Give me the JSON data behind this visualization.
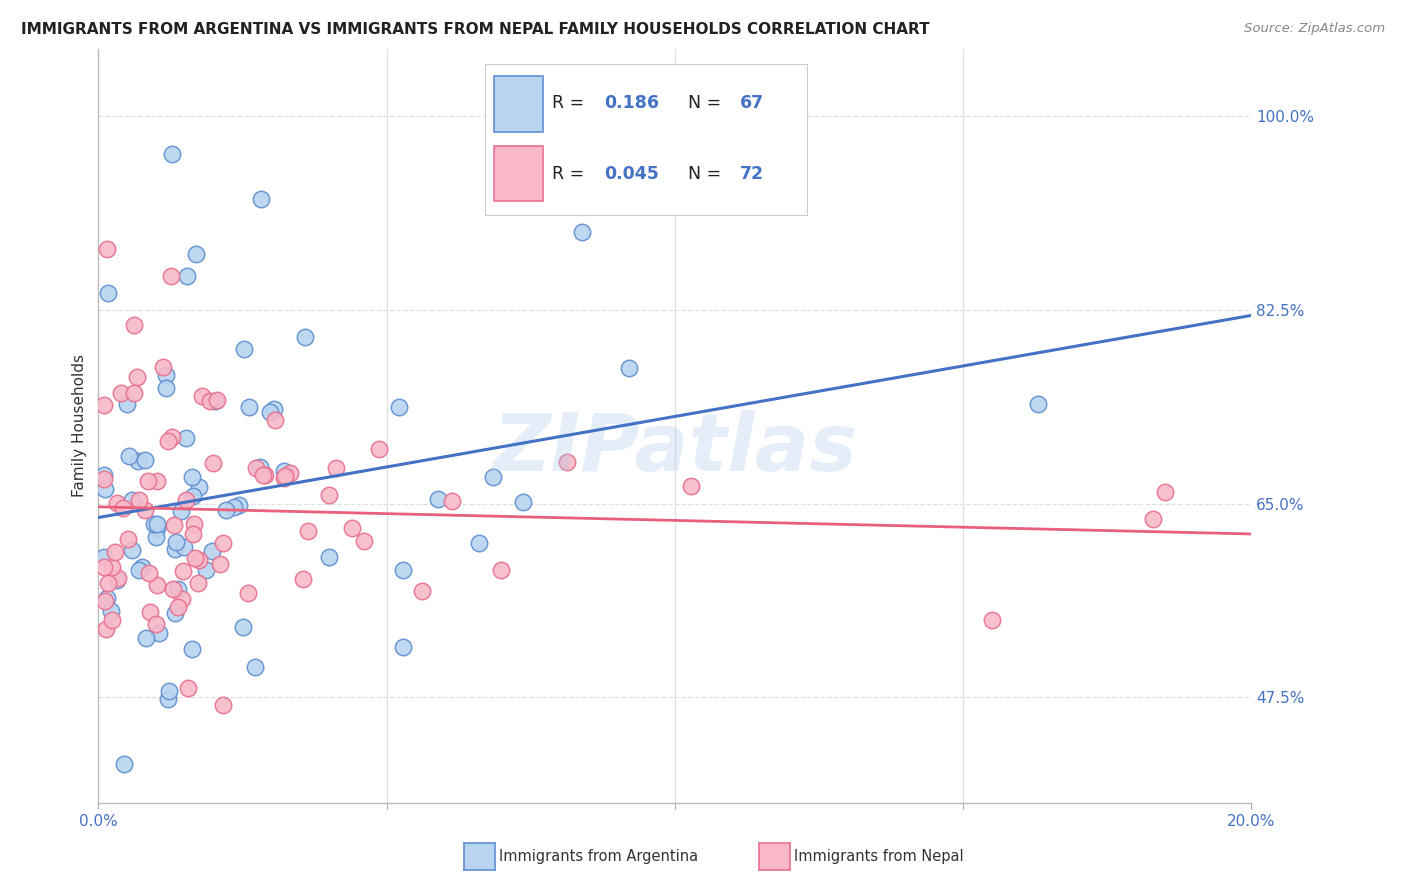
{
  "title": "IMMIGRANTS FROM ARGENTINA VS IMMIGRANTS FROM NEPAL FAMILY HOUSEHOLDS CORRELATION CHART",
  "source": "Source: ZipAtlas.com",
  "ylabel": "Family Households",
  "yticks": [
    0.475,
    0.65,
    0.825,
    1.0
  ],
  "ytick_labels": [
    "47.5%",
    "65.0%",
    "82.5%",
    "100.0%"
  ],
  "xlim": [
    0.0,
    0.2
  ],
  "ylim": [
    0.38,
    1.06
  ],
  "legend_r1": "0.186",
  "legend_n1": "67",
  "legend_r2": "0.045",
  "legend_n2": "72",
  "legend_label1": "Immigrants from Argentina",
  "legend_label2": "Immigrants from Nepal",
  "color_argentina": "#b8d4f0",
  "color_nepal": "#f8b8c8",
  "edge_argentina": "#6090d0",
  "edge_nepal": "#e87090",
  "line_argentina": "#4472c4",
  "line_nepal": "#e8607a",
  "background_color": "#ffffff",
  "grid_color": "#e0e0e0",
  "title_color": "#222222",
  "source_color": "#888888",
  "axis_color": "#4472c4",
  "label_color": "#333333"
}
